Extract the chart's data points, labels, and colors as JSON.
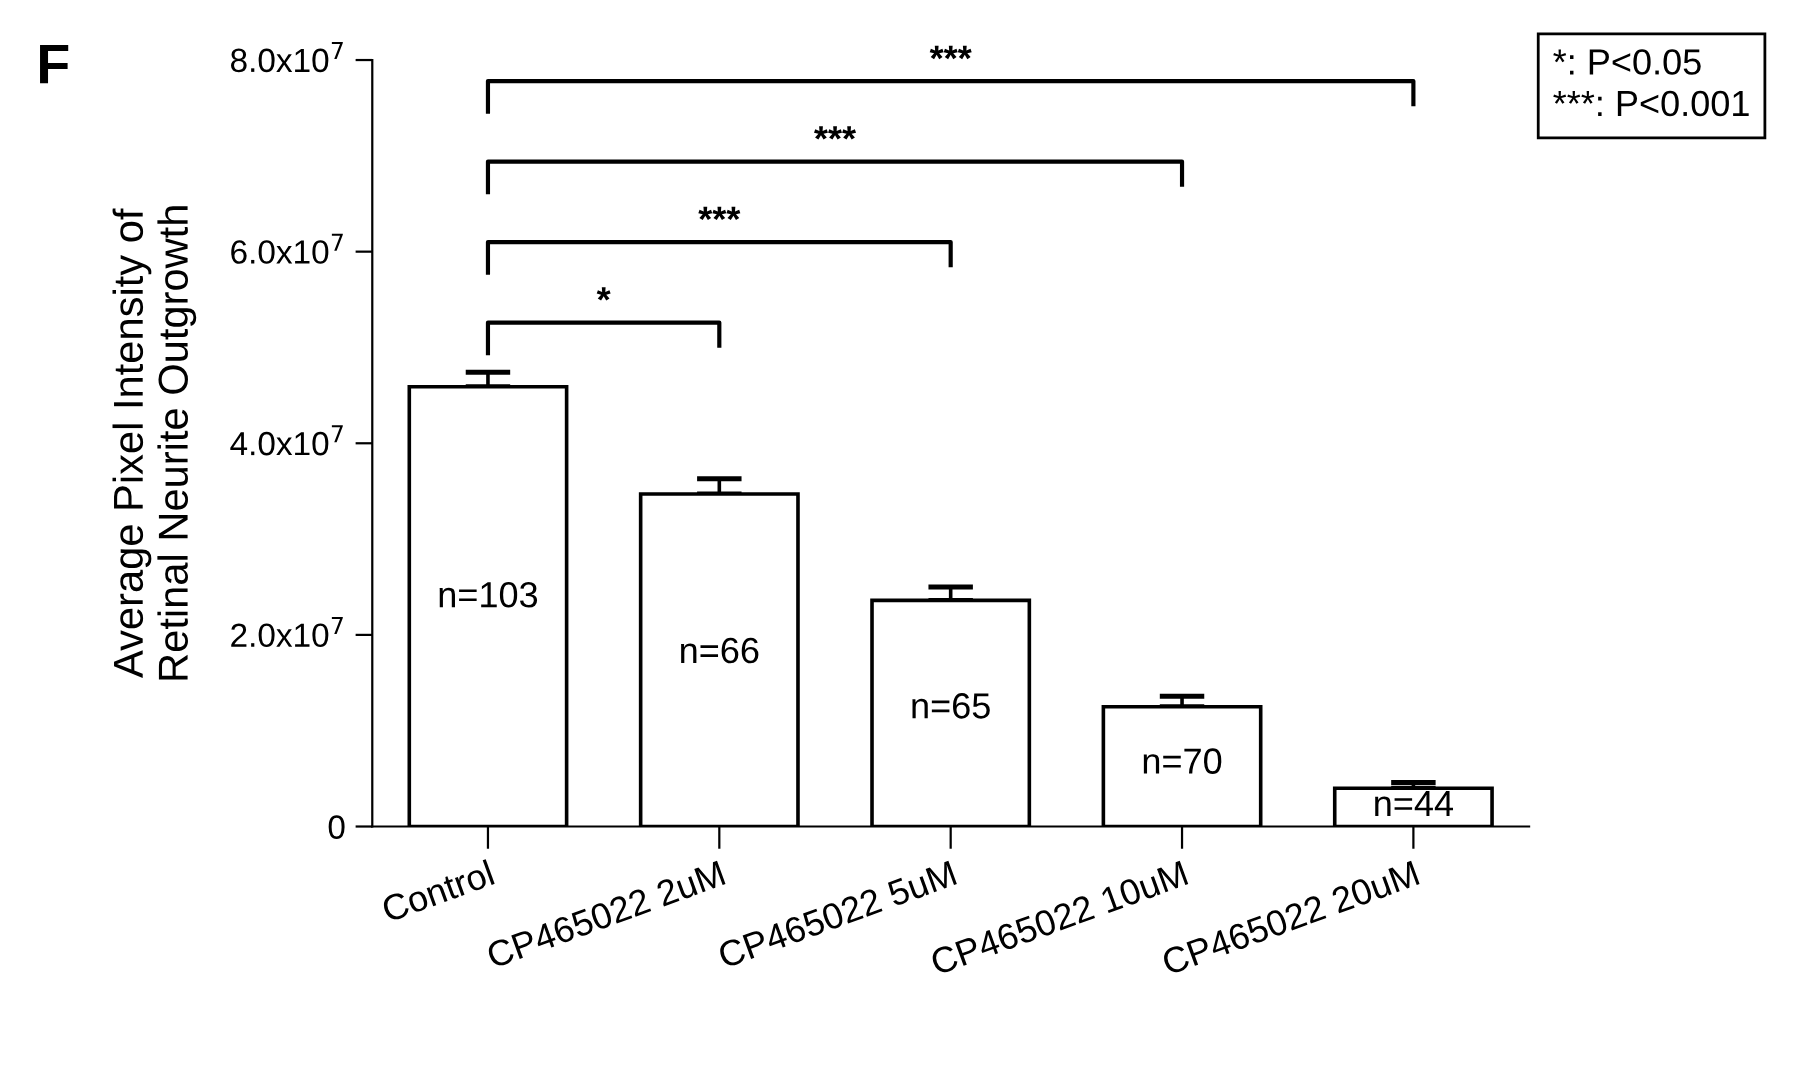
{
  "chart_data": {
    "type": "bar",
    "ylabel": "Average Pixel Intensity of\nRetinal Neurite Outgrowth",
    "categories": [
      "Control",
      "CP465022 2uM",
      "CP465022 5uM",
      "CP465022 10uM",
      "CP465022 20uM"
    ],
    "values": [
      45900000,
      34700000,
      23600000,
      12500000,
      4000000
    ],
    "errors": [
      [
        45900000,
        47400000
      ],
      [
        34700000,
        36300000
      ],
      [
        23600000,
        25000000
      ],
      [
        12500000,
        13600000
      ],
      [
        4000000,
        4600000
      ]
    ],
    "color": "#ffffff",
    "ylim": [
      0,
      80000000
    ],
    "yticks": [
      {
        "value": 0,
        "label": "0"
      },
      {
        "value": 20000000,
        "label": "2.0x10$^{7}$"
      },
      {
        "value": 40000000,
        "label": "4.0x10$^{7}$"
      },
      {
        "value": 60000000,
        "label": "6.0x10$^{7}$"
      },
      {
        "value": 80000000,
        "label": "8.0x10$^{7}$"
      }
    ],
    "grid": false,
    "annotations": [
      "F",
      "*: P<0.05",
      "***: P<0.001",
      "n=103",
      "n=66",
      "n=65",
      "n=70",
      "n=44",
      "*",
      "***",
      "***",
      "***"
    ]
  }
}
